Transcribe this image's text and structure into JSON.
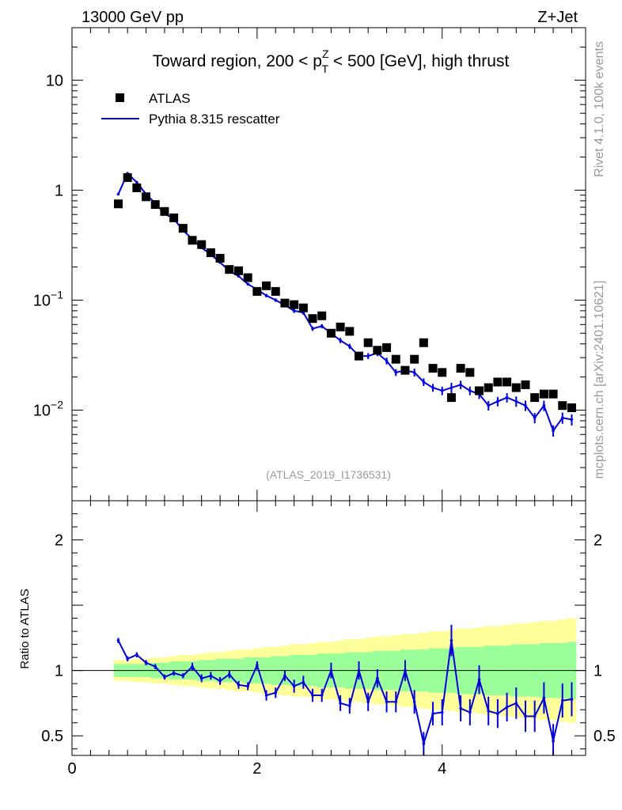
{
  "header": {
    "energy_label": "13000 GeV pp",
    "process_label": "Z+Jet",
    "title_pre": "Toward region, 200 < p",
    "title_sup": "Z",
    "title_sub": "T",
    "title_post": " < 500 [GeV], high thrust",
    "analysis_id": "(ATLAS_2019_I1736531)",
    "rivet_label": "Rivet 4.1.0,  100k events",
    "mcplots_label": "mcplots.cern.ch [arXiv:2401.10621]"
  },
  "chart_data": {
    "type": "scatter",
    "legend_location": "top-left",
    "legend": [
      "ATLAS",
      "Pythia 8.315 rescatter"
    ],
    "x": [
      0.5,
      0.6,
      0.7,
      0.8,
      0.9,
      1.0,
      1.1,
      1.2,
      1.3,
      1.4,
      1.5,
      1.6,
      1.7,
      1.8,
      1.9,
      2.0,
      2.1,
      2.2,
      2.3,
      2.4,
      2.5,
      2.6,
      2.7,
      2.8,
      2.9,
      3.0,
      3.1,
      3.2,
      3.3,
      3.4,
      3.5,
      3.6,
      3.7,
      3.8,
      3.9,
      4.0,
      4.1,
      4.2,
      4.3,
      4.4,
      4.5,
      4.6,
      4.7,
      4.8,
      4.9,
      5.0,
      5.1,
      5.2,
      5.3,
      5.4
    ],
    "main_panel": {
      "yscale": "log",
      "ylim": [
        0.0015,
        30
      ],
      "yticks": [
        0.01,
        0.1,
        1,
        10
      ],
      "ytick_labels": [
        "10^-2",
        "10^-1",
        "1",
        "10"
      ],
      "series": [
        {
          "name": "ATLAS",
          "style": "markers",
          "color": "#000000",
          "values": [
            0.75,
            1.3,
            1.05,
            0.87,
            0.74,
            0.64,
            0.56,
            0.45,
            0.35,
            0.32,
            0.27,
            0.24,
            0.19,
            0.185,
            0.16,
            0.12,
            0.135,
            0.12,
            0.094,
            0.091,
            0.085,
            0.068,
            0.072,
            0.05,
            0.057,
            0.052,
            0.031,
            0.041,
            0.035,
            0.037,
            0.029,
            0.023,
            0.029,
            0.041,
            0.024,
            0.022,
            0.013,
            0.024,
            0.022,
            0.015,
            0.016,
            0.018,
            0.018,
            0.016,
            0.017,
            0.013,
            0.014,
            0.014,
            0.011,
            0.0105
          ]
        },
        {
          "name": "Pythia 8.315 rescatter",
          "style": "line",
          "color": "#0000dd",
          "values": [
            0.92,
            1.42,
            1.18,
            0.92,
            0.76,
            0.61,
            0.55,
            0.43,
            0.36,
            0.3,
            0.26,
            0.22,
            0.185,
            0.165,
            0.14,
            0.125,
            0.11,
            0.1,
            0.09,
            0.08,
            0.077,
            0.055,
            0.058,
            0.05,
            0.043,
            0.038,
            0.031,
            0.031,
            0.033,
            0.028,
            0.022,
            0.023,
            0.022,
            0.018,
            0.016,
            0.015,
            0.016,
            0.017,
            0.015,
            0.014,
            0.011,
            0.012,
            0.013,
            0.012,
            0.011,
            0.0085,
            0.011,
            0.0065,
            0.0085,
            0.0082
          ]
        }
      ]
    },
    "ratio_panel": {
      "ylabel": "Ratio to ATLAS",
      "ylim": [
        0.35,
        2.3
      ],
      "yticks": [
        0.5,
        1,
        2
      ],
      "ytick_labels": [
        "0.5",
        "1",
        "2"
      ],
      "ratio_values": [
        1.23,
        1.09,
        1.12,
        1.06,
        1.03,
        0.95,
        0.98,
        0.96,
        1.03,
        0.94,
        0.96,
        0.92,
        0.97,
        0.89,
        0.88,
        1.04,
        0.81,
        0.83,
        0.96,
        0.88,
        0.91,
        0.81,
        0.81,
        1.0,
        0.75,
        0.73,
        1.0,
        0.76,
        0.94,
        0.76,
        0.76,
        1.0,
        0.76,
        0.44,
        0.67,
        0.68,
        1.23,
        0.71,
        0.68,
        0.93,
        0.69,
        0.67,
        0.72,
        0.75,
        0.65,
        0.65,
        0.79,
        0.46,
        0.77,
        0.78
      ],
      "ratio_errors": [
        0.02,
        0.02,
        0.02,
        0.02,
        0.02,
        0.02,
        0.02,
        0.02,
        0.03,
        0.03,
        0.03,
        0.03,
        0.03,
        0.03,
        0.03,
        0.03,
        0.04,
        0.04,
        0.04,
        0.05,
        0.05,
        0.05,
        0.05,
        0.06,
        0.06,
        0.06,
        0.07,
        0.07,
        0.07,
        0.08,
        0.08,
        0.08,
        0.09,
        0.09,
        0.09,
        0.1,
        0.12,
        0.1,
        0.1,
        0.11,
        0.11,
        0.11,
        0.11,
        0.12,
        0.12,
        0.12,
        0.12,
        0.13,
        0.13,
        0.13
      ],
      "band_inner": [
        0.05,
        0.05,
        0.05,
        0.05,
        0.06,
        0.06,
        0.07,
        0.07,
        0.07,
        0.08,
        0.08,
        0.09,
        0.09,
        0.09,
        0.1,
        0.1,
        0.1,
        0.11,
        0.11,
        0.12,
        0.12,
        0.12,
        0.13,
        0.13,
        0.13,
        0.14,
        0.14,
        0.14,
        0.15,
        0.15,
        0.15,
        0.16,
        0.16,
        0.16,
        0.17,
        0.17,
        0.17,
        0.18,
        0.18,
        0.18,
        0.19,
        0.19,
        0.19,
        0.2,
        0.2,
        0.2,
        0.21,
        0.21,
        0.21,
        0.22
      ],
      "band_outer": [
        0.08,
        0.08,
        0.09,
        0.09,
        0.1,
        0.1,
        0.11,
        0.12,
        0.12,
        0.13,
        0.14,
        0.14,
        0.15,
        0.16,
        0.16,
        0.17,
        0.18,
        0.18,
        0.19,
        0.2,
        0.2,
        0.21,
        0.22,
        0.22,
        0.23,
        0.24,
        0.24,
        0.25,
        0.26,
        0.26,
        0.27,
        0.28,
        0.28,
        0.29,
        0.3,
        0.3,
        0.31,
        0.32,
        0.32,
        0.33,
        0.34,
        0.34,
        0.35,
        0.36,
        0.36,
        0.37,
        0.38,
        0.38,
        0.39,
        0.4
      ]
    },
    "xlim": [
      0,
      5.55
    ],
    "xticks": [
      0,
      2,
      4
    ],
    "xtick_labels": [
      "0",
      "2",
      "4"
    ]
  }
}
